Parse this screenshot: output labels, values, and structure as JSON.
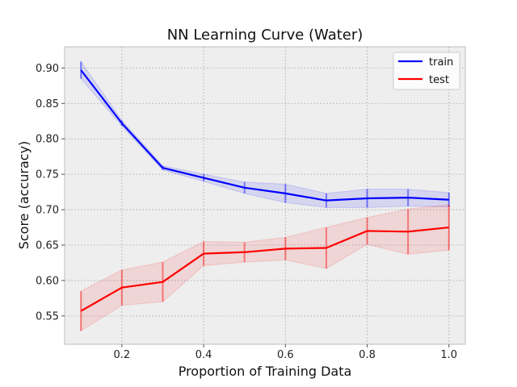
{
  "chart_data": {
    "type": "line",
    "title": "NN Learning Curve (Water)",
    "xlabel": "Proportion of Training Data",
    "ylabel": "Score (accuracy)",
    "xlim": [
      0.06,
      1.04
    ],
    "ylim": [
      0.51,
      0.93
    ],
    "x_ticks": [
      0.2,
      0.4,
      0.6,
      0.8,
      1.0
    ],
    "x_tick_labels": [
      "0.2",
      "0.4",
      "0.6",
      "0.8",
      "1.0"
    ],
    "y_ticks": [
      0.55,
      0.6,
      0.65,
      0.7,
      0.75,
      0.8,
      0.85,
      0.9
    ],
    "y_tick_labels": [
      "0.55",
      "0.60",
      "0.65",
      "0.70",
      "0.75",
      "0.80",
      "0.85",
      "0.90"
    ],
    "grid": true,
    "legend_position": "top-right",
    "x": [
      0.1,
      0.2,
      0.3,
      0.4,
      0.5,
      0.6,
      0.7,
      0.8,
      0.9,
      1.0
    ],
    "series": [
      {
        "name": "train",
        "color": "#0000ff",
        "values": [
          0.897,
          0.822,
          0.759,
          0.745,
          0.731,
          0.723,
          0.713,
          0.716,
          0.717,
          0.714
        ],
        "error": [
          0.012,
          0.004,
          0.003,
          0.005,
          0.008,
          0.013,
          0.01,
          0.013,
          0.012,
          0.01
        ]
      },
      {
        "name": "test",
        "color": "#ff0000",
        "values": [
          0.557,
          0.59,
          0.598,
          0.638,
          0.64,
          0.645,
          0.646,
          0.67,
          0.669,
          0.675
        ],
        "error": [
          0.028,
          0.025,
          0.028,
          0.017,
          0.014,
          0.016,
          0.029,
          0.019,
          0.032,
          0.032
        ]
      }
    ]
  }
}
